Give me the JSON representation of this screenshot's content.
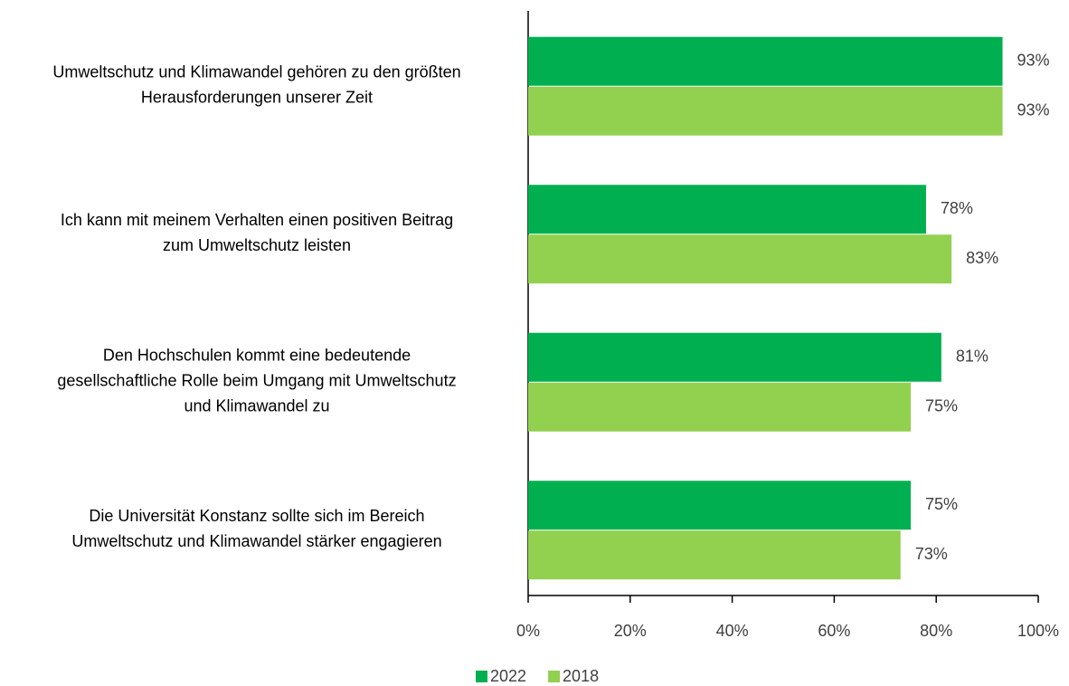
{
  "chart_data": {
    "type": "hbar",
    "categories": [
      [
        "Umweltschutz und Klimawandel gehören zu den größten",
        "Herausforderungen unserer Zeit"
      ],
      [
        "Ich kann mit meinem Verhalten einen positiven Beitrag",
        "zum Umweltschutz leisten"
      ],
      [
        "Den Hochschulen kommt eine bedeutende",
        "gesellschaftliche Rolle beim Umgang mit Umweltschutz",
        "und Klimawandel zu"
      ],
      [
        "Die Universität Konstanz sollte sich im Bereich",
        "Umweltschutz und Klimawandel stärker engagieren"
      ]
    ],
    "series": [
      {
        "name": "2022",
        "color": "#00b050",
        "values": [
          93,
          78,
          81,
          75
        ],
        "value_labels": [
          "93%",
          "78%",
          "81%",
          "75%"
        ]
      },
      {
        "name": "2018",
        "color": "#92d050",
        "values": [
          93,
          83,
          75,
          73
        ],
        "value_labels": [
          "93%",
          "83%",
          "75%",
          "73%"
        ]
      }
    ],
    "xlim": [
      0,
      100
    ],
    "xticks": [
      {
        "value": 0,
        "label": "0%"
      },
      {
        "value": 20,
        "label": "20%"
      },
      {
        "value": 40,
        "label": "40%"
      },
      {
        "value": 60,
        "label": "60%"
      },
      {
        "value": 80,
        "label": "80%"
      },
      {
        "value": 100,
        "label": "100%"
      }
    ],
    "legend": "bottom"
  }
}
